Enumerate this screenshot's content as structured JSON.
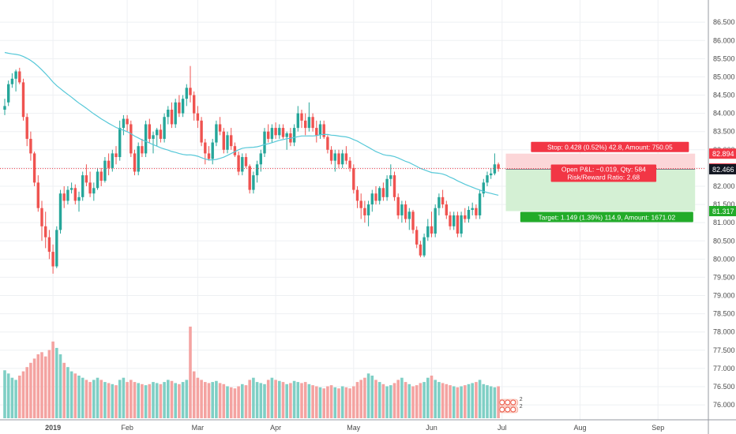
{
  "chart_data": {
    "type": "candlestick",
    "y_axis": {
      "ylim": [
        75.85,
        86.72
      ],
      "ticks": [
        "86.500",
        "86.000",
        "85.500",
        "85.000",
        "84.500",
        "84.000",
        "83.500",
        "83.000",
        "82.500",
        "82.000",
        "81.500",
        "81.000",
        "80.500",
        "80.000",
        "79.500",
        "79.000",
        "78.500",
        "78.000",
        "77.500",
        "77.000",
        "76.500",
        "76.000"
      ]
    },
    "x_axis": {
      "ticks": [
        {
          "label": "2019",
          "bold": true,
          "index": 13
        },
        {
          "label": "Feb",
          "bold": false,
          "index": 33
        },
        {
          "label": "Mar",
          "bold": false,
          "index": 52
        },
        {
          "label": "Apr",
          "bold": false,
          "index": 73
        },
        {
          "label": "May",
          "bold": false,
          "index": 94
        },
        {
          "label": "Jun",
          "bold": false,
          "index": 115
        },
        {
          "label": "Jul",
          "bold": false,
          "index": 134
        },
        {
          "label": "Aug",
          "bold": false,
          "index": 155
        },
        {
          "label": "Sep",
          "bold": false,
          "index": 176
        }
      ]
    },
    "moving_average_color": "#56c8d8",
    "price_line": 82.485,
    "position": {
      "entry": 82.466,
      "stop": 82.894,
      "target": 81.317,
      "start_index": 135,
      "end_index": 186,
      "stop_label": "Stop: 0.428 (0.52%) 42.8, Amount: 750.05",
      "target_label": "Target: 1.149 (1.39%) 114.9, Amount: 1671.02",
      "pnl_label": "Open P&L: −0.019, Qty: 584",
      "rr_label": "Risk/Reward Ratio: 2.68"
    },
    "axis_tags": [
      {
        "value": "82.894",
        "color": "#f23645"
      },
      {
        "value": "82.485",
        "color": "#f23645"
      },
      {
        "value": "82.466",
        "color": "#131722"
      },
      {
        "value": "81.317",
        "color": "#22ab29"
      }
    ],
    "event_markers": [
      {
        "label": "2"
      },
      {
        "label": "2"
      }
    ],
    "colors": {
      "up": "#26a69a",
      "down": "#ef5350",
      "up_volume": "#7fcfc5",
      "down_volume": "#f4a3a1",
      "stop_zone": "#fcd6d8",
      "target_zone": "#d4f0d4"
    },
    "ohlc": [
      {
        "o": 84.1,
        "h": 84.4,
        "l": 83.95,
        "c": 84.2
      },
      {
        "o": 84.3,
        "h": 84.9,
        "l": 84.2,
        "c": 84.8
      },
      {
        "o": 84.8,
        "h": 85.1,
        "l": 84.7,
        "c": 84.95
      },
      {
        "o": 84.95,
        "h": 85.2,
        "l": 84.6,
        "c": 85.15
      },
      {
        "o": 85.15,
        "h": 85.25,
        "l": 84.8,
        "c": 84.85
      },
      {
        "o": 84.85,
        "h": 84.95,
        "l": 83.8,
        "c": 83.9
      },
      {
        "o": 83.9,
        "h": 84.0,
        "l": 83.1,
        "c": 83.3
      },
      {
        "o": 83.3,
        "h": 83.5,
        "l": 82.7,
        "c": 82.9
      },
      {
        "o": 82.9,
        "h": 82.95,
        "l": 82.0,
        "c": 82.1
      },
      {
        "o": 82.1,
        "h": 82.3,
        "l": 81.3,
        "c": 81.4
      },
      {
        "o": 81.4,
        "h": 81.6,
        "l": 80.5,
        "c": 80.9
      },
      {
        "o": 80.9,
        "h": 81.3,
        "l": 80.3,
        "c": 80.6
      },
      {
        "o": 80.6,
        "h": 80.8,
        "l": 80.0,
        "c": 80.2
      },
      {
        "o": 80.2,
        "h": 80.4,
        "l": 79.6,
        "c": 79.8
      },
      {
        "o": 79.8,
        "h": 80.9,
        "l": 79.75,
        "c": 80.8
      },
      {
        "o": 80.8,
        "h": 81.9,
        "l": 80.7,
        "c": 81.8
      },
      {
        "o": 81.8,
        "h": 82.0,
        "l": 81.4,
        "c": 81.6
      },
      {
        "o": 81.6,
        "h": 82.0,
        "l": 81.5,
        "c": 81.9
      },
      {
        "o": 81.9,
        "h": 82.1,
        "l": 81.8,
        "c": 81.95
      },
      {
        "o": 81.95,
        "h": 82.05,
        "l": 81.5,
        "c": 81.6
      },
      {
        "o": 81.6,
        "h": 81.85,
        "l": 81.3,
        "c": 81.7
      },
      {
        "o": 81.7,
        "h": 82.4,
        "l": 81.6,
        "c": 82.3
      },
      {
        "o": 82.3,
        "h": 82.6,
        "l": 82.0,
        "c": 82.1
      },
      {
        "o": 82.1,
        "h": 82.4,
        "l": 81.7,
        "c": 81.8
      },
      {
        "o": 81.8,
        "h": 82.1,
        "l": 81.6,
        "c": 81.95
      },
      {
        "o": 81.95,
        "h": 82.5,
        "l": 81.9,
        "c": 82.4
      },
      {
        "o": 82.4,
        "h": 82.5,
        "l": 82.0,
        "c": 82.15
      },
      {
        "o": 82.15,
        "h": 82.8,
        "l": 82.1,
        "c": 82.7
      },
      {
        "o": 82.7,
        "h": 82.9,
        "l": 82.3,
        "c": 82.5
      },
      {
        "o": 82.5,
        "h": 83.0,
        "l": 82.4,
        "c": 82.9
      },
      {
        "o": 82.9,
        "h": 83.1,
        "l": 82.6,
        "c": 82.8
      },
      {
        "o": 82.8,
        "h": 83.8,
        "l": 82.7,
        "c": 83.6
      },
      {
        "o": 83.6,
        "h": 83.95,
        "l": 83.4,
        "c": 83.85
      },
      {
        "o": 83.85,
        "h": 83.95,
        "l": 83.5,
        "c": 83.7
      },
      {
        "o": 83.7,
        "h": 83.8,
        "l": 82.8,
        "c": 82.9
      },
      {
        "o": 82.9,
        "h": 83.0,
        "l": 82.3,
        "c": 82.4
      },
      {
        "o": 82.4,
        "h": 83.2,
        "l": 82.3,
        "c": 83.1
      },
      {
        "o": 83.1,
        "h": 83.3,
        "l": 82.8,
        "c": 82.9
      },
      {
        "o": 82.9,
        "h": 83.8,
        "l": 82.8,
        "c": 83.7
      },
      {
        "o": 83.7,
        "h": 83.85,
        "l": 83.2,
        "c": 83.3
      },
      {
        "o": 83.3,
        "h": 83.5,
        "l": 82.9,
        "c": 83.4
      },
      {
        "o": 83.4,
        "h": 83.6,
        "l": 83.1,
        "c": 83.55
      },
      {
        "o": 83.55,
        "h": 83.7,
        "l": 83.2,
        "c": 83.3
      },
      {
        "o": 83.3,
        "h": 84.0,
        "l": 83.2,
        "c": 83.9
      },
      {
        "o": 83.9,
        "h": 84.2,
        "l": 83.7,
        "c": 84.1
      },
      {
        "o": 84.1,
        "h": 84.3,
        "l": 83.6,
        "c": 83.7
      },
      {
        "o": 83.7,
        "h": 84.4,
        "l": 83.6,
        "c": 84.3
      },
      {
        "o": 84.3,
        "h": 84.5,
        "l": 83.9,
        "c": 84.0
      },
      {
        "o": 84.0,
        "h": 84.5,
        "l": 83.9,
        "c": 84.4
      },
      {
        "o": 84.4,
        "h": 84.8,
        "l": 84.2,
        "c": 84.7
      },
      {
        "o": 84.7,
        "h": 85.3,
        "l": 84.3,
        "c": 84.5
      },
      {
        "o": 84.5,
        "h": 84.6,
        "l": 83.8,
        "c": 84.0
      },
      {
        "o": 84.0,
        "h": 84.2,
        "l": 83.6,
        "c": 83.8
      },
      {
        "o": 83.8,
        "h": 83.9,
        "l": 83.1,
        "c": 83.2
      },
      {
        "o": 83.2,
        "h": 83.3,
        "l": 82.6,
        "c": 82.9
      },
      {
        "o": 82.9,
        "h": 83.1,
        "l": 82.7,
        "c": 82.75
      },
      {
        "o": 82.75,
        "h": 83.3,
        "l": 82.6,
        "c": 83.2
      },
      {
        "o": 83.2,
        "h": 83.8,
        "l": 83.1,
        "c": 83.7
      },
      {
        "o": 83.7,
        "h": 83.9,
        "l": 83.4,
        "c": 83.5
      },
      {
        "o": 83.5,
        "h": 83.6,
        "l": 82.9,
        "c": 83.0
      },
      {
        "o": 83.0,
        "h": 83.5,
        "l": 82.9,
        "c": 83.4
      },
      {
        "o": 83.4,
        "h": 83.6,
        "l": 83.0,
        "c": 83.1
      },
      {
        "o": 83.1,
        "h": 83.2,
        "l": 82.8,
        "c": 82.85
      },
      {
        "o": 82.85,
        "h": 82.95,
        "l": 82.3,
        "c": 82.4
      },
      {
        "o": 82.4,
        "h": 82.9,
        "l": 82.3,
        "c": 82.8
      },
      {
        "o": 82.8,
        "h": 82.9,
        "l": 82.5,
        "c": 82.55
      },
      {
        "o": 82.55,
        "h": 82.6,
        "l": 81.8,
        "c": 81.9
      },
      {
        "o": 81.9,
        "h": 82.4,
        "l": 81.8,
        "c": 82.3
      },
      {
        "o": 82.3,
        "h": 82.7,
        "l": 82.1,
        "c": 82.6
      },
      {
        "o": 82.6,
        "h": 83.0,
        "l": 82.4,
        "c": 82.9
      },
      {
        "o": 82.9,
        "h": 83.6,
        "l": 82.8,
        "c": 83.5
      },
      {
        "o": 83.5,
        "h": 83.7,
        "l": 83.2,
        "c": 83.3
      },
      {
        "o": 83.3,
        "h": 83.7,
        "l": 83.2,
        "c": 83.6
      },
      {
        "o": 83.6,
        "h": 83.75,
        "l": 83.3,
        "c": 83.4
      },
      {
        "o": 83.4,
        "h": 83.7,
        "l": 83.3,
        "c": 83.6
      },
      {
        "o": 83.6,
        "h": 83.7,
        "l": 83.3,
        "c": 83.35
      },
      {
        "o": 83.35,
        "h": 83.5,
        "l": 83.0,
        "c": 83.45
      },
      {
        "o": 83.45,
        "h": 83.6,
        "l": 83.1,
        "c": 83.2
      },
      {
        "o": 83.2,
        "h": 83.7,
        "l": 83.1,
        "c": 83.6
      },
      {
        "o": 83.6,
        "h": 84.2,
        "l": 83.5,
        "c": 84.0
      },
      {
        "o": 84.0,
        "h": 84.1,
        "l": 83.6,
        "c": 83.8
      },
      {
        "o": 83.8,
        "h": 84.0,
        "l": 83.4,
        "c": 83.6
      },
      {
        "o": 83.6,
        "h": 84.3,
        "l": 83.5,
        "c": 83.9
      },
      {
        "o": 83.9,
        "h": 84.0,
        "l": 83.5,
        "c": 83.6
      },
      {
        "o": 83.6,
        "h": 83.8,
        "l": 83.2,
        "c": 83.4
      },
      {
        "o": 83.4,
        "h": 83.8,
        "l": 83.3,
        "c": 83.7
      },
      {
        "o": 83.7,
        "h": 83.8,
        "l": 83.3,
        "c": 83.35
      },
      {
        "o": 83.35,
        "h": 83.4,
        "l": 82.9,
        "c": 83.0
      },
      {
        "o": 83.0,
        "h": 83.1,
        "l": 82.6,
        "c": 82.7
      },
      {
        "o": 82.7,
        "h": 83.0,
        "l": 82.4,
        "c": 82.9
      },
      {
        "o": 82.9,
        "h": 83.0,
        "l": 82.5,
        "c": 82.6
      },
      {
        "o": 82.6,
        "h": 83.0,
        "l": 82.5,
        "c": 82.9
      },
      {
        "o": 82.9,
        "h": 83.1,
        "l": 82.6,
        "c": 82.7
      },
      {
        "o": 82.7,
        "h": 82.8,
        "l": 82.4,
        "c": 82.5
      },
      {
        "o": 82.5,
        "h": 82.6,
        "l": 81.8,
        "c": 81.9
      },
      {
        "o": 81.9,
        "h": 82.0,
        "l": 81.4,
        "c": 81.6
      },
      {
        "o": 81.6,
        "h": 81.8,
        "l": 81.1,
        "c": 81.4
      },
      {
        "o": 81.4,
        "h": 81.6,
        "l": 81.0,
        "c": 81.2
      },
      {
        "o": 81.2,
        "h": 81.6,
        "l": 80.9,
        "c": 81.5
      },
      {
        "o": 81.5,
        "h": 81.9,
        "l": 81.3,
        "c": 81.8
      },
      {
        "o": 81.8,
        "h": 82.0,
        "l": 81.5,
        "c": 81.6
      },
      {
        "o": 81.6,
        "h": 82.0,
        "l": 81.5,
        "c": 81.95
      },
      {
        "o": 81.95,
        "h": 82.1,
        "l": 81.6,
        "c": 81.7
      },
      {
        "o": 81.7,
        "h": 82.3,
        "l": 81.6,
        "c": 82.2
      },
      {
        "o": 82.2,
        "h": 82.6,
        "l": 82.0,
        "c": 82.3
      },
      {
        "o": 82.3,
        "h": 82.4,
        "l": 81.6,
        "c": 81.7
      },
      {
        "o": 81.7,
        "h": 81.8,
        "l": 81.1,
        "c": 81.2
      },
      {
        "o": 81.2,
        "h": 81.6,
        "l": 81.0,
        "c": 81.5
      },
      {
        "o": 81.5,
        "h": 81.6,
        "l": 81.0,
        "c": 81.1
      },
      {
        "o": 81.1,
        "h": 81.4,
        "l": 80.8,
        "c": 81.3
      },
      {
        "o": 81.3,
        "h": 81.35,
        "l": 80.7,
        "c": 80.8
      },
      {
        "o": 80.8,
        "h": 80.9,
        "l": 80.3,
        "c": 80.4
      },
      {
        "o": 80.4,
        "h": 80.5,
        "l": 80.05,
        "c": 80.1
      },
      {
        "o": 80.1,
        "h": 80.7,
        "l": 80.05,
        "c": 80.6
      },
      {
        "o": 80.6,
        "h": 81.1,
        "l": 80.5,
        "c": 80.9
      },
      {
        "o": 80.9,
        "h": 81.3,
        "l": 80.6,
        "c": 80.7
      },
      {
        "o": 80.7,
        "h": 81.5,
        "l": 80.6,
        "c": 81.4
      },
      {
        "o": 81.4,
        "h": 81.8,
        "l": 81.2,
        "c": 81.7
      },
      {
        "o": 81.7,
        "h": 81.9,
        "l": 81.4,
        "c": 81.5
      },
      {
        "o": 81.5,
        "h": 81.6,
        "l": 81.1,
        "c": 81.2
      },
      {
        "o": 81.2,
        "h": 81.3,
        "l": 80.8,
        "c": 80.9
      },
      {
        "o": 80.9,
        "h": 81.3,
        "l": 80.8,
        "c": 81.2
      },
      {
        "o": 81.2,
        "h": 81.3,
        "l": 80.6,
        "c": 80.7
      },
      {
        "o": 80.7,
        "h": 81.3,
        "l": 80.6,
        "c": 81.2
      },
      {
        "o": 81.2,
        "h": 81.4,
        "l": 81.0,
        "c": 81.1
      },
      {
        "o": 81.1,
        "h": 81.45,
        "l": 81.0,
        "c": 81.35
      },
      {
        "o": 81.35,
        "h": 81.55,
        "l": 81.2,
        "c": 81.4
      },
      {
        "o": 81.4,
        "h": 81.5,
        "l": 81.1,
        "c": 81.2
      },
      {
        "o": 81.2,
        "h": 81.9,
        "l": 81.1,
        "c": 81.8
      },
      {
        "o": 81.8,
        "h": 82.2,
        "l": 81.7,
        "c": 82.1
      },
      {
        "o": 82.1,
        "h": 82.4,
        "l": 82.0,
        "c": 82.3
      },
      {
        "o": 82.3,
        "h": 82.5,
        "l": 82.2,
        "c": 82.35
      },
      {
        "o": 82.35,
        "h": 82.9,
        "l": 82.3,
        "c": 82.6
      },
      {
        "o": 82.6,
        "h": 82.65,
        "l": 82.4,
        "c": 82.48
      }
    ],
    "volume": [
      0.45,
      0.42,
      0.38,
      0.36,
      0.4,
      0.44,
      0.48,
      0.52,
      0.56,
      0.6,
      0.62,
      0.58,
      0.64,
      0.72,
      0.66,
      0.6,
      0.52,
      0.48,
      0.44,
      0.42,
      0.4,
      0.38,
      0.36,
      0.34,
      0.36,
      0.38,
      0.36,
      0.34,
      0.33,
      0.32,
      0.31,
      0.36,
      0.38,
      0.34,
      0.36,
      0.34,
      0.33,
      0.32,
      0.31,
      0.32,
      0.34,
      0.33,
      0.32,
      0.34,
      0.36,
      0.35,
      0.33,
      0.32,
      0.34,
      0.36,
      0.86,
      0.44,
      0.38,
      0.36,
      0.34,
      0.33,
      0.34,
      0.35,
      0.33,
      0.32,
      0.3,
      0.29,
      0.28,
      0.3,
      0.32,
      0.31,
      0.36,
      0.38,
      0.34,
      0.33,
      0.32,
      0.36,
      0.38,
      0.36,
      0.35,
      0.34,
      0.32,
      0.33,
      0.35,
      0.34,
      0.33,
      0.34,
      0.32,
      0.31,
      0.3,
      0.29,
      0.28,
      0.3,
      0.31,
      0.29,
      0.28,
      0.3,
      0.29,
      0.28,
      0.3,
      0.34,
      0.36,
      0.38,
      0.42,
      0.4,
      0.36,
      0.34,
      0.32,
      0.3,
      0.31,
      0.33,
      0.36,
      0.38,
      0.34,
      0.32,
      0.3,
      0.31,
      0.33,
      0.34,
      0.38,
      0.4,
      0.36,
      0.34,
      0.33,
      0.32,
      0.31,
      0.3,
      0.29,
      0.3,
      0.31,
      0.32,
      0.33,
      0.34,
      0.36,
      0.32,
      0.31,
      0.3,
      0.29,
      0.3
    ]
  }
}
